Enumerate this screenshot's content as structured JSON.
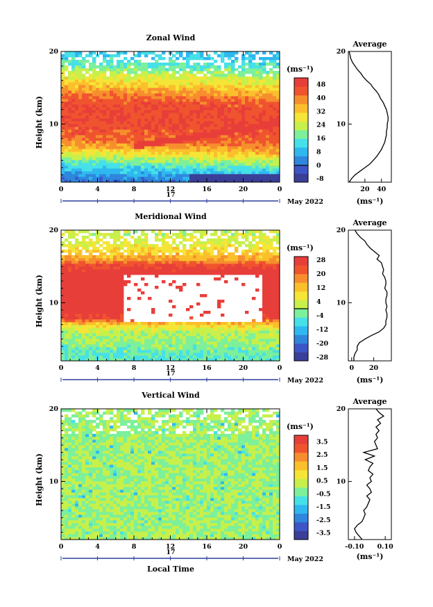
{
  "common": {
    "x_ticks": [
      "0",
      "4",
      "8",
      "12",
      "16",
      "20",
      "0"
    ],
    "y_ticks": [
      "20",
      "10"
    ],
    "ylabel": "Height (km)",
    "date_center": "17",
    "month_label": "May 2022",
    "xlabel": "Local Time",
    "unit_label": "(ms⁻¹)",
    "avg_unit": "(ms⁻¹)",
    "avg_title": "Average"
  },
  "chart_data": [
    {
      "type": "heatmap",
      "title": "Zonal Wind",
      "xlabel": "",
      "ylabel": "Height (km)",
      "xlim": [
        0,
        24
      ],
      "ylim": [
        2,
        20
      ],
      "colorbar": {
        "unit": "(ms⁻¹)",
        "range": [
          -10,
          52
        ],
        "tick_values": [
          48,
          40,
          32,
          24,
          16,
          8,
          0,
          -8
        ],
        "tick_labels": [
          "48",
          "40",
          "32",
          "24",
          "16",
          "8",
          "0",
          "-8"
        ],
        "zero_line": 0
      },
      "field": {
        "base": [
          [
            2,
            0
          ],
          [
            3,
            4
          ],
          [
            4,
            10
          ],
          [
            5,
            18
          ],
          [
            6,
            26
          ],
          [
            7,
            36
          ],
          [
            8,
            42
          ],
          [
            9,
            44
          ],
          [
            10,
            46
          ],
          [
            11,
            46
          ],
          [
            12,
            46
          ],
          [
            13,
            46
          ],
          [
            14,
            42
          ],
          [
            15,
            36
          ],
          [
            16,
            30
          ],
          [
            17,
            24
          ],
          [
            18,
            18
          ],
          [
            19,
            14
          ],
          [
            20,
            10
          ]
        ],
        "late_shift": 6,
        "jet_core_value": 50,
        "min_value": -6
      },
      "average_profile": {
        "title": "Average",
        "xlabel": "(ms⁻¹)",
        "x_ticks": [
          20,
          40
        ],
        "xlim": [
          0,
          52
        ],
        "heights": [
          2.0,
          2.5,
          3.0,
          3.5,
          4.0,
          4.5,
          5.0,
          5.5,
          6.0,
          6.5,
          7.0,
          7.5,
          8.0,
          8.5,
          9.0,
          9.5,
          10.0,
          10.5,
          11.0,
          11.5,
          12.0,
          12.5,
          13.0,
          13.5,
          14.0,
          14.5,
          15.0,
          15.5,
          16.0,
          16.5,
          17.0,
          17.5,
          18.0,
          18.5,
          19.0,
          19.5,
          20.0
        ],
        "values": [
          1,
          4,
          8,
          14,
          20,
          26,
          30,
          34,
          37,
          40,
          42,
          44,
          45,
          46,
          46,
          47,
          47,
          48,
          48,
          47,
          46,
          44,
          42,
          39,
          37,
          34,
          30,
          27,
          22,
          18,
          15,
          11,
          8,
          5,
          3,
          2,
          1
        ]
      }
    },
    {
      "type": "heatmap",
      "title": "Meridional Wind",
      "xlabel": "",
      "ylabel": "Height (km)",
      "xlim": [
        0,
        24
      ],
      "ylim": [
        2,
        20
      ],
      "colorbar": {
        "unit": "(ms⁻¹)",
        "range": [
          -30,
          30
        ],
        "tick_values": [
          28,
          20,
          12,
          4,
          -4,
          -12,
          -20,
          -28
        ],
        "tick_labels": [
          "28",
          "20",
          "12",
          "4",
          "-4",
          "-12",
          "-20",
          "-28"
        ],
        "zero_line": 0
      },
      "field": {
        "base": [
          [
            2,
            -6
          ],
          [
            3,
            -4
          ],
          [
            4,
            -2
          ],
          [
            5,
            0
          ],
          [
            6,
            2
          ],
          [
            7,
            10
          ],
          [
            8,
            26
          ],
          [
            9,
            30
          ],
          [
            10,
            30
          ],
          [
            11,
            30
          ],
          [
            12,
            30
          ],
          [
            13,
            30
          ],
          [
            14,
            30
          ],
          [
            15,
            26
          ],
          [
            16,
            16
          ],
          [
            17,
            10
          ],
          [
            18,
            6
          ],
          [
            19,
            4
          ],
          [
            20,
            2
          ]
        ],
        "missing_block": {
          "x": [
            7,
            22
          ],
          "y": [
            7.5,
            14
          ]
        }
      },
      "average_profile": {
        "title": "Average",
        "xlabel": "(ms⁻¹)",
        "x_ticks": [
          0,
          20
        ],
        "xlim": [
          -3,
          36
        ],
        "heights": [
          2.0,
          2.5,
          3.0,
          3.5,
          4.0,
          4.5,
          5.0,
          5.5,
          6.0,
          6.5,
          7.0,
          7.5,
          8.0,
          8.5,
          9.0,
          9.5,
          10.0,
          10.5,
          11.0,
          11.5,
          12.0,
          12.5,
          13.0,
          13.5,
          14.0,
          14.5,
          15.0,
          15.5,
          16.0,
          16.5,
          17.0,
          17.5,
          18.0,
          18.5,
          19.0,
          19.5,
          20.0
        ],
        "values": [
          2,
          2,
          3,
          5,
          5,
          7,
          12,
          18,
          25,
          29,
          31,
          31,
          32,
          32,
          31,
          32,
          31,
          31,
          32,
          32,
          30,
          31,
          31,
          30,
          28,
          29,
          28,
          27,
          23,
          25,
          21,
          17,
          14,
          12,
          8,
          5,
          3
        ]
      }
    },
    {
      "type": "heatmap",
      "title": "Vertical Wind",
      "xlabel": "Local Time",
      "ylabel": "Height (km)",
      "xlim": [
        0,
        24
      ],
      "ylim": [
        2,
        20
      ],
      "colorbar": {
        "unit": "(ms⁻¹)",
        "range": [
          -4.0,
          4.0
        ],
        "tick_values": [
          3.5,
          2.5,
          1.5,
          0.5,
          -0.5,
          -1.5,
          -2.5,
          -3.5
        ],
        "tick_labels": [
          "3.5",
          "2.5",
          "1.5",
          "0.5",
          "-0.5",
          "-1.5",
          "-2.5",
          "-3.5"
        ],
        "zero_line": null
      },
      "field": {
        "base": [
          [
            2,
            0
          ],
          [
            20,
            0
          ]
        ],
        "noise_amplitude": 0.5
      },
      "average_profile": {
        "title": "Average",
        "xlabel": "(ms⁻¹)",
        "x_ticks": [
          -0.1,
          0.1
        ],
        "x_tick_labels": [
          "-0.10",
          "0.10"
        ],
        "xlim": [
          -0.14,
          0.14
        ],
        "heights": [
          2.0,
          2.5,
          3.0,
          3.5,
          4.0,
          4.5,
          5.0,
          5.5,
          6.0,
          6.5,
          7.0,
          7.5,
          8.0,
          8.5,
          9.0,
          9.5,
          10.0,
          10.5,
          11.0,
          11.5,
          12.0,
          12.5,
          13.0,
          13.5,
          14.0,
          14.5,
          15.0,
          15.5,
          16.0,
          16.5,
          17.0,
          17.5,
          18.0,
          18.5,
          19.0,
          19.5,
          20.0
        ],
        "values": [
          -0.05,
          -0.07,
          -0.09,
          -0.1,
          -0.08,
          -0.05,
          -0.04,
          -0.03,
          -0.04,
          -0.02,
          -0.01,
          0.0,
          -0.02,
          0.01,
          0.0,
          -0.02,
          0.01,
          0.0,
          0.02,
          -0.01,
          0.0,
          0.02,
          -0.03,
          0.03,
          -0.04,
          0.05,
          0.04,
          0.03,
          0.05,
          0.04,
          0.06,
          0.04,
          0.07,
          0.05,
          0.09,
          0.06,
          0.04
        ]
      }
    }
  ]
}
